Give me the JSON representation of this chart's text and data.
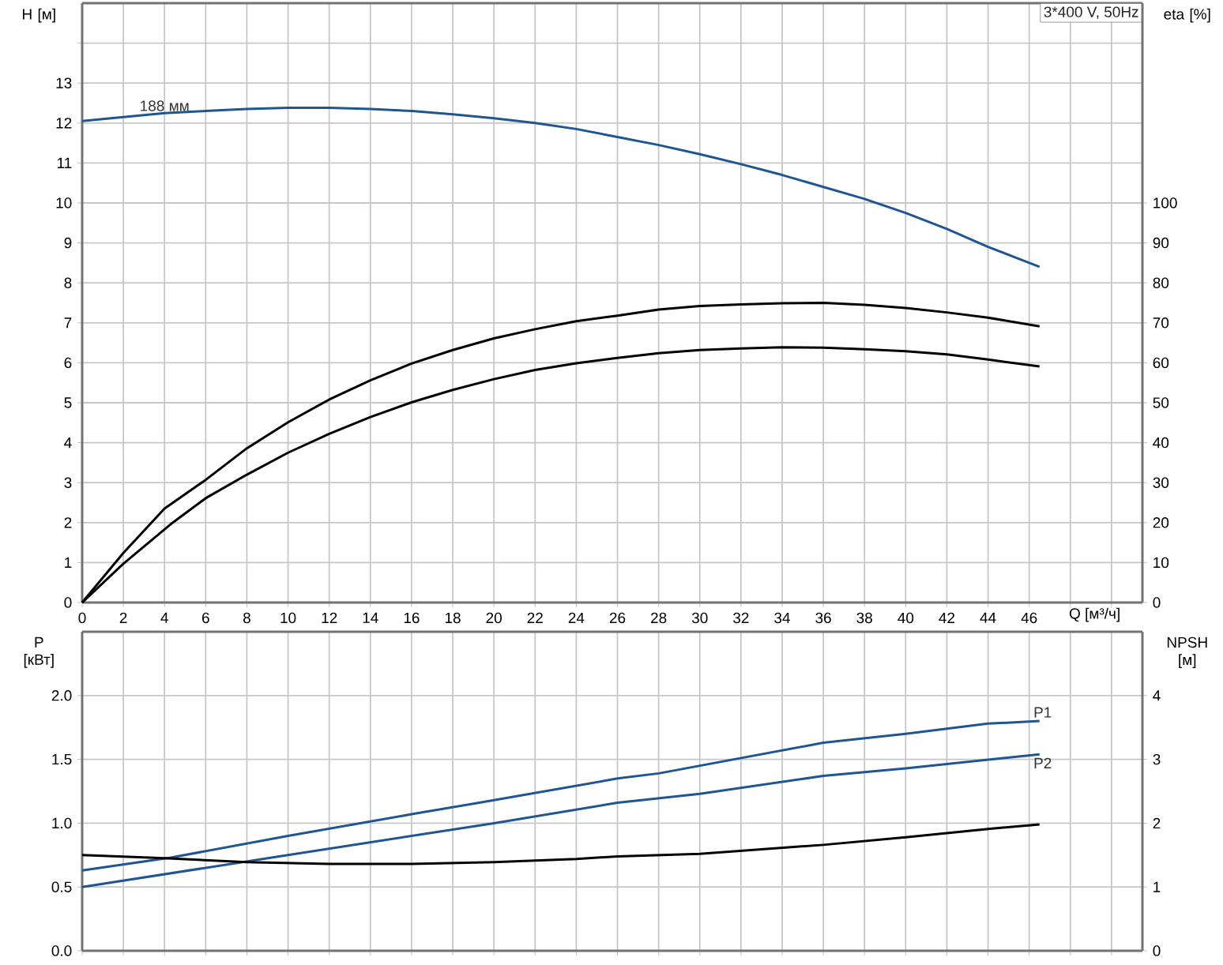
{
  "chart_data": [
    {
      "type": "line",
      "xlabel": "Q [м³/ч]",
      "ylabel": "H [м]",
      "y2label": "eta [%]",
      "annotations": [
        "3*400 V, 50Hz",
        {
          "text": "188 мм",
          "x": 4,
          "y": 12.25
        }
      ],
      "xlim": [
        0,
        51.5
      ],
      "ylim": [
        0,
        15
      ],
      "y2lim": [
        0,
        150
      ],
      "xticks": [
        0,
        2,
        4,
        6,
        8,
        10,
        12,
        14,
        16,
        18,
        20,
        22,
        24,
        26,
        28,
        30,
        32,
        34,
        36,
        38,
        40,
        42,
        44,
        46,
        {
          "value": 48,
          "label": null
        },
        {
          "value": 50,
          "label": null
        }
      ],
      "yticks": [
        0,
        1,
        2,
        3,
        4,
        5,
        6,
        7,
        8,
        9,
        10,
        11,
        12,
        13,
        {
          "value": 14,
          "label": null
        }
      ],
      "y2ticks": [
        0,
        10,
        20,
        30,
        40,
        50,
        60,
        70,
        80,
        90,
        100
      ],
      "grid": true,
      "series": [
        {
          "color": "#1f5590",
          "x": [
            0,
            2,
            4,
            6,
            8,
            10,
            12,
            14,
            16,
            18,
            20,
            22,
            24,
            26,
            28,
            30,
            32,
            34,
            36,
            38,
            40,
            42,
            44,
            46.5
          ],
          "values": [
            12.05,
            12.15,
            12.25,
            12.3,
            12.35,
            12.38,
            12.38,
            12.35,
            12.3,
            12.22,
            12.12,
            12.0,
            11.85,
            11.65,
            11.45,
            11.22,
            10.97,
            10.7,
            10.4,
            10.1,
            9.75,
            9.35,
            8.9,
            8.4
          ]
        },
        {
          "color": "#000000",
          "axis": "y2",
          "x": [
            0,
            2,
            4,
            6,
            8,
            10,
            12,
            14,
            16,
            18,
            20,
            22,
            24,
            26,
            28,
            30,
            32,
            34,
            36,
            38,
            40,
            42,
            44,
            46.5
          ],
          "values": [
            0,
            12.4,
            23.5,
            30.7,
            38.6,
            45.1,
            50.8,
            55.6,
            59.8,
            63.2,
            66.1,
            68.4,
            70.4,
            71.8,
            73.3,
            74.2,
            74.6,
            74.9,
            75,
            74.5,
            73.7,
            72.6,
            71.3,
            69.1
          ]
        },
        {
          "color": "#000000",
          "axis": "y2",
          "x": [
            0,
            2,
            4.3,
            6,
            8,
            10,
            12,
            14,
            16,
            18,
            20,
            22,
            24,
            26,
            28,
            30,
            32,
            34,
            36,
            38,
            40,
            42,
            44,
            46.5
          ],
          "values": [
            0,
            9.7,
            19.6,
            26.1,
            32,
            37.5,
            42.2,
            46.4,
            50.1,
            53.2,
            55.9,
            58.2,
            59.9,
            61.2,
            62.4,
            63.2,
            63.6,
            63.9,
            63.8,
            63.4,
            62.9,
            62.1,
            60.8,
            59.1
          ]
        }
      ]
    },
    {
      "type": "line",
      "ylabel": "P [кВт]",
      "y2label": "NPSH [м]",
      "xlim": [
        0,
        51.5
      ],
      "ylim": [
        0,
        2.5
      ],
      "y2lim": [
        0,
        5
      ],
      "xticks": [
        0,
        2,
        4,
        6,
        8,
        10,
        12,
        14,
        16,
        18,
        20,
        22,
        24,
        26,
        28,
        30,
        32,
        34,
        36,
        38,
        40,
        42,
        44,
        46,
        48,
        50
      ],
      "yticks": [
        {
          "value": 0,
          "label": "0.0"
        },
        0.5,
        {
          "value": 1,
          "label": "1.0"
        },
        1.5,
        {
          "value": 2,
          "label": "2.0"
        }
      ],
      "y2ticks": [
        0,
        1,
        2,
        3,
        4
      ],
      "grid": true,
      "tick_labels": "y",
      "series": [
        {
          "name": "P1",
          "color": "#1f5590",
          "x": [
            0,
            4.3,
            10,
            16,
            20,
            26,
            28,
            32,
            36,
            40,
            44,
            46.5
          ],
          "values": [
            0.63,
            0.73,
            0.9,
            1.07,
            1.18,
            1.35,
            1.39,
            1.51,
            1.63,
            1.7,
            1.78,
            1.8
          ]
        },
        {
          "name": "P2",
          "color": "#1f5590",
          "x": [
            0,
            10,
            20,
            26,
            30,
            36,
            40,
            46.5
          ],
          "values": [
            0.5,
            0.75,
            1.0,
            1.16,
            1.23,
            1.37,
            1.43,
            1.54
          ]
        },
        {
          "color": "#000000",
          "axis": "y2",
          "x": [
            0,
            4,
            8,
            12,
            16,
            20,
            24,
            26,
            30,
            36,
            40,
            44,
            46.5
          ],
          "values": [
            1.5,
            1.45,
            1.39,
            1.36,
            1.36,
            1.39,
            1.44,
            1.48,
            1.52,
            1.66,
            1.78,
            1.91,
            1.98
          ]
        }
      ]
    }
  ]
}
